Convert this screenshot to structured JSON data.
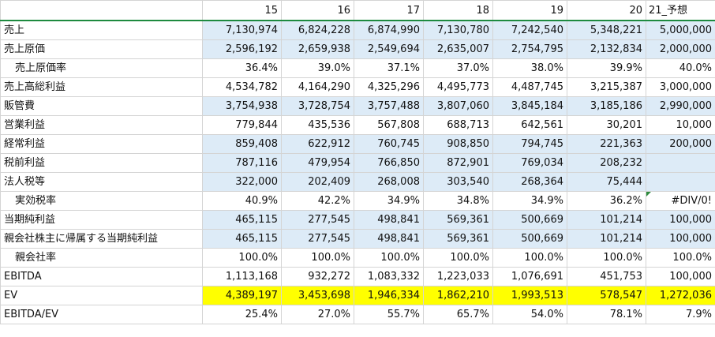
{
  "columns": [
    "",
    "15",
    "16",
    "17",
    "18",
    "19",
    "20",
    "21_予想"
  ],
  "rows": [
    {
      "label": "売上",
      "indent": false,
      "fill": "blue",
      "values": [
        "7,130,974",
        "6,824,228",
        "6,874,990",
        "7,130,780",
        "7,242,540",
        "5,348,221",
        "5,000,000"
      ]
    },
    {
      "label": "売上原価",
      "indent": false,
      "fill": "blue",
      "values": [
        "2,596,192",
        "2,659,938",
        "2,549,694",
        "2,635,007",
        "2,754,795",
        "2,132,834",
        "2,000,000"
      ]
    },
    {
      "label": "売上原価率",
      "indent": true,
      "fill": "none",
      "values": [
        "36.4%",
        "39.0%",
        "37.1%",
        "37.0%",
        "38.0%",
        "39.9%",
        "40.0%"
      ]
    },
    {
      "label": "売上高総利益",
      "indent": false,
      "fill": "none",
      "values": [
        "4,534,782",
        "4,164,290",
        "4,325,296",
        "4,495,773",
        "4,487,745",
        "3,215,387",
        "3,000,000"
      ]
    },
    {
      "label": "販管費",
      "indent": false,
      "fill": "blue",
      "values": [
        "3,754,938",
        "3,728,754",
        "3,757,488",
        "3,807,060",
        "3,845,184",
        "3,185,186",
        "2,990,000"
      ]
    },
    {
      "label": "営業利益",
      "indent": false,
      "fill": "none",
      "values": [
        "779,844",
        "435,536",
        "567,808",
        "688,713",
        "642,561",
        "30,201",
        "10,000"
      ]
    },
    {
      "label": "経常利益",
      "indent": false,
      "fill": "blue",
      "values": [
        "859,408",
        "622,912",
        "760,745",
        "908,850",
        "794,745",
        "221,363",
        "200,000"
      ]
    },
    {
      "label": "税前利益",
      "indent": false,
      "fill": "blue",
      "values": [
        "787,116",
        "479,954",
        "766,850",
        "872,901",
        "769,034",
        "208,232",
        ""
      ]
    },
    {
      "label": "法人税等",
      "indent": false,
      "fill": "blue",
      "values": [
        "322,000",
        "202,409",
        "268,008",
        "303,540",
        "268,364",
        "75,444",
        ""
      ]
    },
    {
      "label": "実効税率",
      "indent": true,
      "fill": "none",
      "values": [
        "40.9%",
        "42.2%",
        "34.9%",
        "34.8%",
        "34.9%",
        "36.2%",
        "#DIV/0!"
      ]
    },
    {
      "label": "当期純利益",
      "indent": false,
      "fill": "blue",
      "values": [
        "465,115",
        "277,545",
        "498,841",
        "569,361",
        "500,669",
        "101,214",
        "100,000"
      ]
    },
    {
      "label": "親会社株主に帰属する当期純利益",
      "indent": false,
      "fill": "blue",
      "values": [
        "465,115",
        "277,545",
        "498,841",
        "569,361",
        "500,669",
        "101,214",
        "100,000"
      ]
    },
    {
      "label": "親会社率",
      "indent": true,
      "fill": "none",
      "values": [
        "100.0%",
        "100.0%",
        "100.0%",
        "100.0%",
        "100.0%",
        "100.0%",
        "100.0%"
      ]
    },
    {
      "label": "EBITDA",
      "indent": false,
      "fill": "none",
      "values": [
        "1,113,168",
        "932,272",
        "1,083,332",
        "1,223,033",
        "1,076,691",
        "451,753",
        "100,000"
      ]
    },
    {
      "label": "EV",
      "indent": false,
      "fill": "yellow",
      "values": [
        "4,389,197",
        "3,453,698",
        "1,946,334",
        "1,862,210",
        "1,993,513",
        "578,547",
        "1,272,036"
      ]
    },
    {
      "label": "EBITDA/EV",
      "indent": false,
      "fill": "none",
      "values": [
        "25.4%",
        "27.0%",
        "55.7%",
        "65.7%",
        "54.0%",
        "78.1%",
        "7.9%"
      ]
    }
  ],
  "colors": {
    "blue_fill": "#ddebf7",
    "yellow_fill": "#ffff00",
    "grid": "#d4d4d4",
    "error_flag": "#2e8b3e"
  }
}
